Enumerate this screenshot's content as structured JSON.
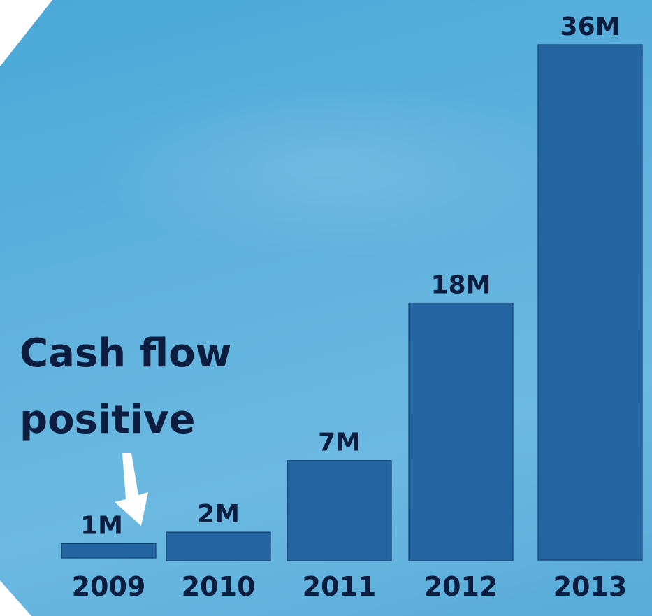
{
  "chart_data": {
    "type": "bar",
    "categories": [
      "2009",
      "2010",
      "2011",
      "2012",
      "2013"
    ],
    "values": [
      1,
      2,
      7,
      18,
      36
    ],
    "data_labels": [
      "1M",
      "2M",
      "7M",
      "18M",
      "36M"
    ],
    "ylim": [
      0,
      36
    ],
    "grid": false,
    "annotation": "Cash flow positive",
    "colors": {
      "bar": "#2265a0",
      "bar_edge": "#163f70",
      "text": "#0d1d3f",
      "arrow": "#ffffff"
    }
  }
}
